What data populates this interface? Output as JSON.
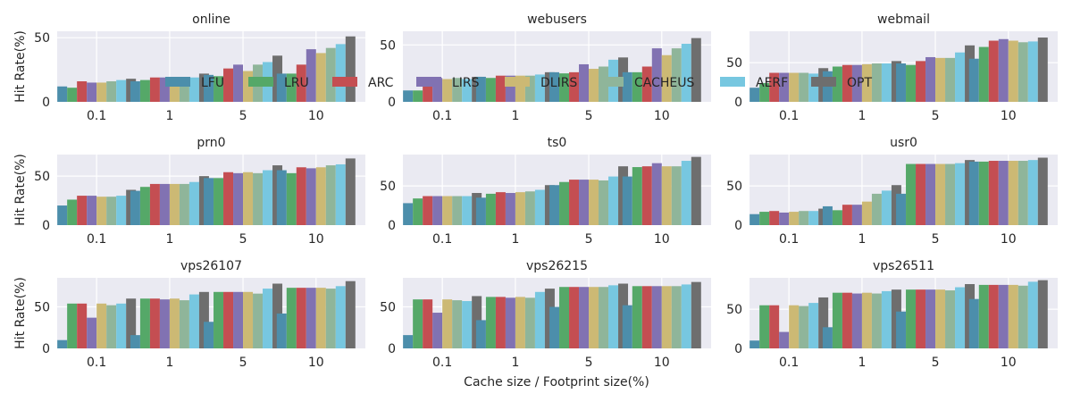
{
  "chart_data": {
    "type": "bar",
    "xlabel": "Cache size / Footprint size(%)",
    "ylabel": "Hit Rate(%)",
    "categories": [
      "0.1",
      "1",
      "5",
      "10"
    ],
    "legend": {
      "placement": "top overlaying first row",
      "entries": [
        "LFU",
        "LRU",
        "ARC",
        "LIRS",
        "DLIRS",
        "CACHEUS",
        "AERF",
        "OPT"
      ]
    },
    "series_colors": [
      "#4c8eab",
      "#55a868",
      "#c44e52",
      "#8172b2",
      "#ccb974",
      "#8fb59a",
      "#77c7e0",
      "#6e6e6e"
    ],
    "grid": true,
    "panels": [
      {
        "title": "online",
        "ylim": [
          0,
          55
        ],
        "yticks": [
          0,
          50
        ],
        "values": [
          [
            12,
            11,
            16,
            15,
            15,
            16,
            17,
            18
          ],
          [
            16,
            17,
            19,
            19,
            12,
            19,
            19,
            22
          ],
          [
            21,
            20,
            26,
            29,
            24,
            29,
            31,
            36
          ],
          [
            22,
            22,
            29,
            41,
            38,
            42,
            45,
            51
          ]
        ]
      },
      {
        "title": "webusers",
        "ylim": [
          0,
          62
        ],
        "yticks": [
          0,
          50
        ],
        "values": [
          [
            10,
            10,
            21,
            21,
            20,
            21,
            20,
            22
          ],
          [
            22,
            21,
            23,
            23,
            23,
            23,
            24,
            26
          ],
          [
            26,
            25,
            26,
            33,
            29,
            31,
            37,
            39
          ],
          [
            26,
            26,
            31,
            47,
            41,
            47,
            51,
            56
          ]
        ]
      },
      {
        "title": "webmail",
        "ylim": [
          0,
          90
        ],
        "yticks": [
          0,
          50
        ],
        "values": [
          [
            18,
            24,
            37,
            37,
            37,
            37,
            36,
            43
          ],
          [
            39,
            45,
            47,
            47,
            48,
            49,
            49,
            52
          ],
          [
            49,
            47,
            52,
            57,
            56,
            56,
            63,
            72
          ],
          [
            55,
            70,
            78,
            80,
            78,
            76,
            77,
            82
          ]
        ]
      },
      {
        "title": "prn0",
        "ylim": [
          0,
          72
        ],
        "yticks": [
          0,
          50
        ],
        "values": [
          [
            20,
            26,
            30,
            30,
            29,
            29,
            30,
            36
          ],
          [
            35,
            39,
            42,
            42,
            42,
            42,
            44,
            50
          ],
          [
            48,
            48,
            54,
            53,
            54,
            53,
            56,
            61
          ],
          [
            56,
            53,
            59,
            58,
            59,
            61,
            62,
            68
          ]
        ]
      },
      {
        "title": "ts0",
        "ylim": [
          0,
          90
        ],
        "yticks": [
          0,
          50
        ],
        "values": [
          [
            28,
            34,
            37,
            37,
            37,
            37,
            37,
            41
          ],
          [
            35,
            40,
            42,
            41,
            42,
            43,
            45,
            51
          ],
          [
            51,
            55,
            58,
            58,
            58,
            57,
            62,
            75
          ],
          [
            62,
            74,
            75,
            79,
            75,
            75,
            82,
            87
          ]
        ]
      },
      {
        "title": "usr0",
        "ylim": [
          0,
          90
        ],
        "yticks": [
          0,
          50
        ],
        "values": [
          [
            14,
            17,
            18,
            16,
            17,
            18,
            18,
            21
          ],
          [
            24,
            19,
            26,
            26,
            30,
            40,
            44,
            51
          ],
          [
            40,
            78,
            78,
            78,
            78,
            78,
            79,
            83
          ],
          [
            81,
            81,
            82,
            82,
            82,
            82,
            83,
            86
          ]
        ]
      },
      {
        "title": "vps26107",
        "ylim": [
          0,
          85
        ],
        "yticks": [
          0,
          50
        ],
        "values": [
          [
            10,
            54,
            54,
            37,
            54,
            52,
            54,
            60
          ],
          [
            16,
            60,
            60,
            59,
            60,
            58,
            65,
            68
          ],
          [
            32,
            68,
            68,
            68,
            68,
            66,
            72,
            78
          ],
          [
            42,
            73,
            73,
            73,
            73,
            72,
            75,
            81
          ]
        ]
      },
      {
        "title": "vps26215",
        "ylim": [
          0,
          85
        ],
        "yticks": [
          0,
          50
        ],
        "values": [
          [
            16,
            59,
            59,
            43,
            59,
            58,
            57,
            63
          ],
          [
            34,
            62,
            62,
            61,
            62,
            61,
            68,
            72
          ],
          [
            50,
            74,
            74,
            74,
            74,
            74,
            76,
            78
          ],
          [
            52,
            75,
            75,
            75,
            75,
            75,
            77,
            80
          ]
        ]
      },
      {
        "title": "vps26511",
        "ylim": [
          0,
          90
        ],
        "yticks": [
          0,
          50
        ],
        "values": [
          [
            10,
            55,
            55,
            21,
            55,
            54,
            58,
            65
          ],
          [
            27,
            71,
            71,
            70,
            71,
            70,
            73,
            75
          ],
          [
            47,
            75,
            75,
            75,
            75,
            74,
            78,
            82
          ],
          [
            63,
            81,
            81,
            81,
            81,
            80,
            85,
            87
          ]
        ]
      }
    ]
  }
}
